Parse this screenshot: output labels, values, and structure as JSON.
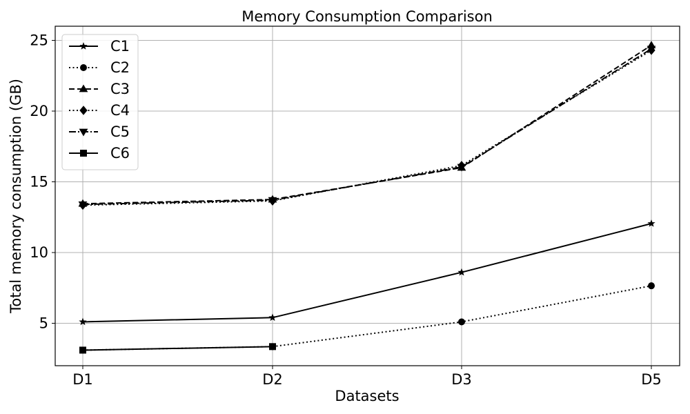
{
  "chart_data": {
    "type": "line",
    "title": "Memory Consumption Comparison",
    "xlabel": "Datasets",
    "ylabel": "Total memory consumption (GB)",
    "categories": [
      "D1",
      "D2",
      "D3",
      "D5"
    ],
    "ylim": [
      2.0,
      26.0
    ],
    "yticks": [
      5,
      10,
      15,
      20,
      25
    ],
    "grid": true,
    "legend_position": "top-left",
    "series": [
      {
        "name": "C1",
        "values": [
          5.1,
          5.4,
          8.6,
          12.05
        ],
        "linestyle": "solid",
        "marker": "star",
        "color": "#000000"
      },
      {
        "name": "C2",
        "values": [
          3.1,
          3.35,
          5.1,
          7.65
        ],
        "linestyle": "dotted",
        "marker": "circle",
        "color": "#000000"
      },
      {
        "name": "C3",
        "values": [
          13.45,
          13.75,
          16.0,
          24.65
        ],
        "linestyle": "dashed",
        "marker": "triangle-up",
        "color": "#000000"
      },
      {
        "name": "C4",
        "values": [
          13.35,
          13.65,
          16.15,
          24.3
        ],
        "linestyle": "dotted",
        "marker": "diamond",
        "color": "#000000"
      },
      {
        "name": "C5",
        "values": [
          13.4,
          13.7,
          16.05,
          24.4
        ],
        "linestyle": "dashdot",
        "marker": "triangle-down",
        "color": "#000000"
      },
      {
        "name": "C6",
        "values": [
          3.1,
          3.35,
          null,
          null
        ],
        "linestyle": "solid",
        "marker": "square",
        "color": "#000000"
      }
    ]
  }
}
